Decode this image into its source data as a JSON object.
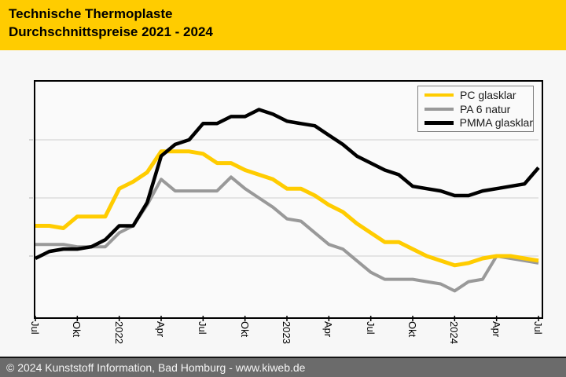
{
  "header": {
    "title_line1": "Technische Thermoplaste",
    "title_line2": "Durchschnittspreise 2021 - 2024",
    "bg_color": "#ffcc00",
    "text_color": "#000000"
  },
  "legend": {
    "position": "top-right",
    "items": [
      {
        "label": "PC glasklar",
        "color": "#ffcc00"
      },
      {
        "label": "PA 6 natur",
        "color": "#999999"
      },
      {
        "label": "PMMA glasklar",
        "color": "#000000"
      }
    ]
  },
  "footer": {
    "text": "© 2024 Kunststoff Information, Bad Homburg - www.kiweb.de",
    "bg_color": "#6b6b6b",
    "text_color": "#f4f4f4"
  },
  "chart_data": {
    "type": "line",
    "title": "Technische Thermoplaste Durchschnittspreise 2021 - 2024",
    "x_start": "Jul 2021",
    "x_end": "Jul 2024",
    "x_interval": "monthly",
    "x_tick_labels": [
      "Jul",
      "Okt",
      "2022",
      "Apr",
      "Jul",
      "Okt",
      "2023",
      "Apr",
      "Jul",
      "Okt",
      "2024",
      "Apr",
      "Jul"
    ],
    "xlabel": "",
    "ylabel": "",
    "y_axis_labels_visible": false,
    "ylim": [
      0,
      100
    ],
    "grid": "horizontal",
    "gridlines_pct": [
      25,
      50,
      75
    ],
    "legend_position": "top-right",
    "series": [
      {
        "name": "PC glasklar",
        "color": "#ffcc00",
        "draw_order": 2,
        "values": [
          38,
          38,
          37,
          42,
          42,
          42,
          54,
          57,
          61,
          70,
          70,
          70,
          69,
          65,
          65,
          62,
          60,
          58,
          54,
          54,
          51,
          47,
          44,
          39,
          35,
          31,
          31,
          28,
          25,
          23,
          21,
          22,
          24,
          25,
          25,
          24,
          23
        ]
      },
      {
        "name": "PA 6 natur",
        "color": "#999999",
        "draw_order": 1,
        "values": [
          30,
          30,
          30,
          29,
          29,
          29,
          35,
          38,
          47,
          58,
          53,
          53,
          53,
          53,
          59,
          54,
          50,
          46,
          41,
          40,
          35,
          30,
          28,
          23,
          18,
          15,
          15,
          15,
          14,
          13,
          10,
          14,
          15,
          25,
          24,
          23,
          22
        ]
      },
      {
        "name": "PMMA glasklar",
        "color": "#000000",
        "draw_order": 3,
        "values": [
          24,
          27,
          28,
          28,
          29,
          32,
          38,
          38,
          48,
          68,
          73,
          75,
          82,
          82,
          85,
          85,
          88,
          86,
          83,
          82,
          81,
          77,
          73,
          68,
          65,
          62,
          60,
          55,
          54,
          53,
          51,
          51,
          53,
          54,
          55,
          56,
          63
        ]
      }
    ]
  }
}
